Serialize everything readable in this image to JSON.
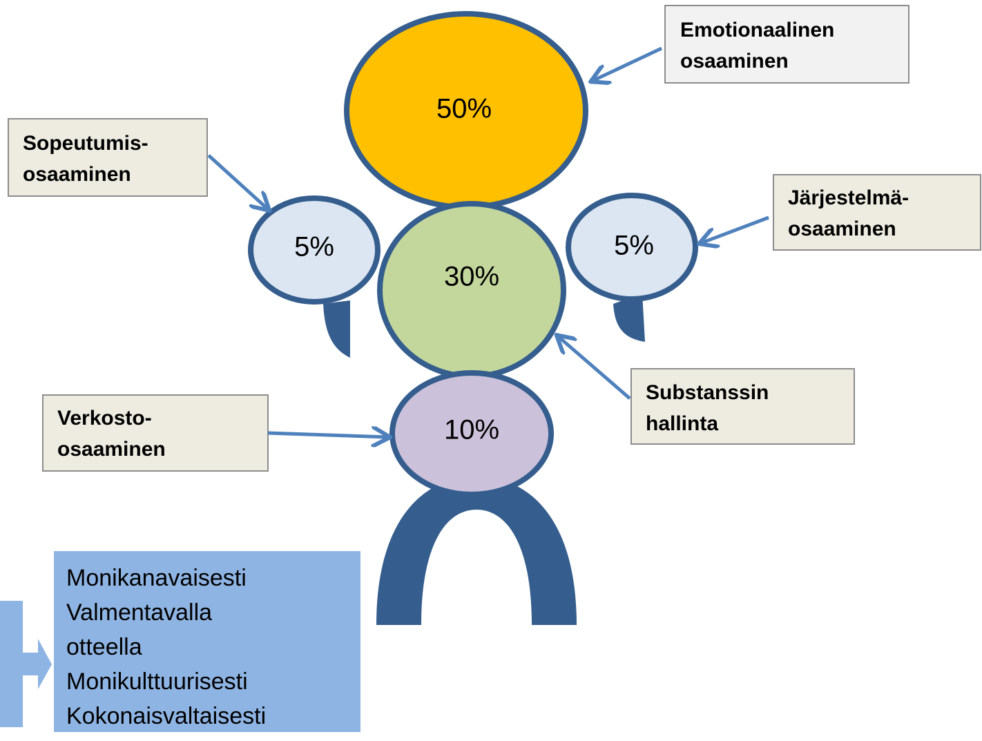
{
  "nodes": [
    {
      "label": "50%"
    },
    {
      "label": "5%"
    },
    {
      "label": "30%"
    },
    {
      "label": "5%"
    },
    {
      "label": "10%"
    }
  ],
  "callouts": [
    {
      "lines": [
        "Emotionaalinen",
        "osaaminen"
      ]
    },
    {
      "lines": [
        "Sopeutumis-",
        "osaaminen"
      ]
    },
    {
      "lines": [
        "Järjestelmä-",
        "osaaminen"
      ]
    },
    {
      "lines": [
        "Substanssin",
        "hallinta"
      ]
    },
    {
      "lines": [
        "Verkosto-",
        "osaaminen"
      ]
    }
  ],
  "list": {
    "lines": [
      "Monikanavaisesti",
      "Valmentavalla",
      "otteella",
      "Monikulttuurisesti",
      "Kokonaisvaltaisesti"
    ]
  }
}
